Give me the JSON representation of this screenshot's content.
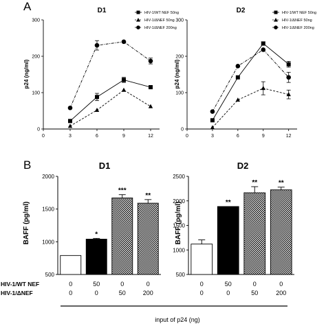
{
  "panels": {
    "a": "A",
    "b": "B"
  },
  "chart_data": [
    {
      "type": "line",
      "title": "D1",
      "xlabel": "",
      "ylabel": "p24 (ng/ml)",
      "x_ticks": [
        "0",
        "3",
        "6",
        "9",
        "12"
      ],
      "y_ticks": [
        "0",
        "100",
        "200",
        "300"
      ],
      "xlim": [
        0,
        13
      ],
      "ylim": [
        0,
        300
      ],
      "legend_position": "top-right",
      "series": [
        {
          "name": "HIV-1/WT NEF 50ng",
          "marker": "square",
          "dash": "solid",
          "x": [
            3,
            6,
            9,
            12
          ],
          "y": [
            22,
            88,
            135,
            115
          ],
          "err": [
            0,
            10,
            7,
            4
          ]
        },
        {
          "name": "HIV-1/ΔNEF 50ng",
          "marker": "triangle",
          "dash": "dash",
          "x": [
            3,
            6,
            9,
            12
          ],
          "y": [
            8,
            52,
            107,
            62
          ],
          "err": [
            0,
            0,
            0,
            0
          ]
        },
        {
          "name": "HIV-1/ΔNEF 200ng",
          "marker": "circle",
          "dash": "dashdot",
          "x": [
            3,
            6,
            9,
            12
          ],
          "y": [
            58,
            230,
            240,
            187
          ],
          "err": [
            0,
            13,
            0,
            8
          ]
        }
      ]
    },
    {
      "type": "line",
      "title": "D2",
      "xlabel": "",
      "ylabel": "p24 (ng/ml)",
      "x_ticks": [
        "0",
        "3",
        "6",
        "9",
        "12"
      ],
      "y_ticks": [
        "0",
        "100",
        "200",
        "300"
      ],
      "xlim": [
        0,
        13
      ],
      "ylim": [
        0,
        300
      ],
      "legend_position": "top-right",
      "series": [
        {
          "name": "HIV-1/WT NEF 50ng",
          "marker": "square",
          "dash": "solid",
          "x": [
            3,
            6,
            9,
            12
          ],
          "y": [
            24,
            142,
            235,
            178
          ],
          "err": [
            0,
            0,
            5,
            8
          ]
        },
        {
          "name": "HIV-1/ΔNEF 50ng",
          "marker": "triangle",
          "dash": "dash",
          "x": [
            3,
            6,
            9,
            12
          ],
          "y": [
            4,
            80,
            112,
            95
          ],
          "err": [
            0,
            0,
            18,
            12
          ]
        },
        {
          "name": "HIV-1/ΔNEF 200ng",
          "marker": "circle",
          "dash": "dashdot",
          "x": [
            3,
            6,
            9,
            12
          ],
          "y": [
            48,
            173,
            218,
            142
          ],
          "err": [
            0,
            0,
            0,
            14
          ]
        }
      ]
    },
    {
      "type": "bar",
      "title": "D1",
      "ylabel": "BAFF (pg/ml)",
      "y_ticks": [
        "500",
        "1000",
        "1500",
        "2000"
      ],
      "ylim": [
        500,
        2000
      ],
      "values": [
        790,
        1040,
        1670,
        1590
      ],
      "err": [
        0,
        12,
        50,
        55
      ],
      "significance": [
        "",
        "*",
        "***",
        "**"
      ],
      "fills": [
        "white",
        "black",
        "checker",
        "checker"
      ]
    },
    {
      "type": "bar",
      "title": "D2",
      "ylabel": "BAFF (pg/ml)",
      "y_ticks": [
        "500",
        "1000",
        "1500",
        "2000",
        "2500"
      ],
      "ylim": [
        500,
        2500
      ],
      "values": [
        1120,
        1885,
        2165,
        2225
      ],
      "err": [
        85,
        0,
        125,
        55
      ],
      "significance": [
        "",
        "**",
        "**",
        "**"
      ],
      "fills": [
        "white",
        "black",
        "checker",
        "checker"
      ]
    }
  ],
  "table": {
    "row1_label": "HIV-1/WT NEF",
    "row2_label": "HIV-1/ΔNEF",
    "row1_d1": [
      "0",
      "50",
      "0",
      "0"
    ],
    "row2_d1": [
      "0",
      "0",
      "50",
      "200"
    ],
    "row1_d2": [
      "0",
      "50",
      "0",
      "0"
    ],
    "row2_d2": [
      "0",
      "0",
      "50",
      "200"
    ],
    "footer": "input of p24 (ng)"
  }
}
